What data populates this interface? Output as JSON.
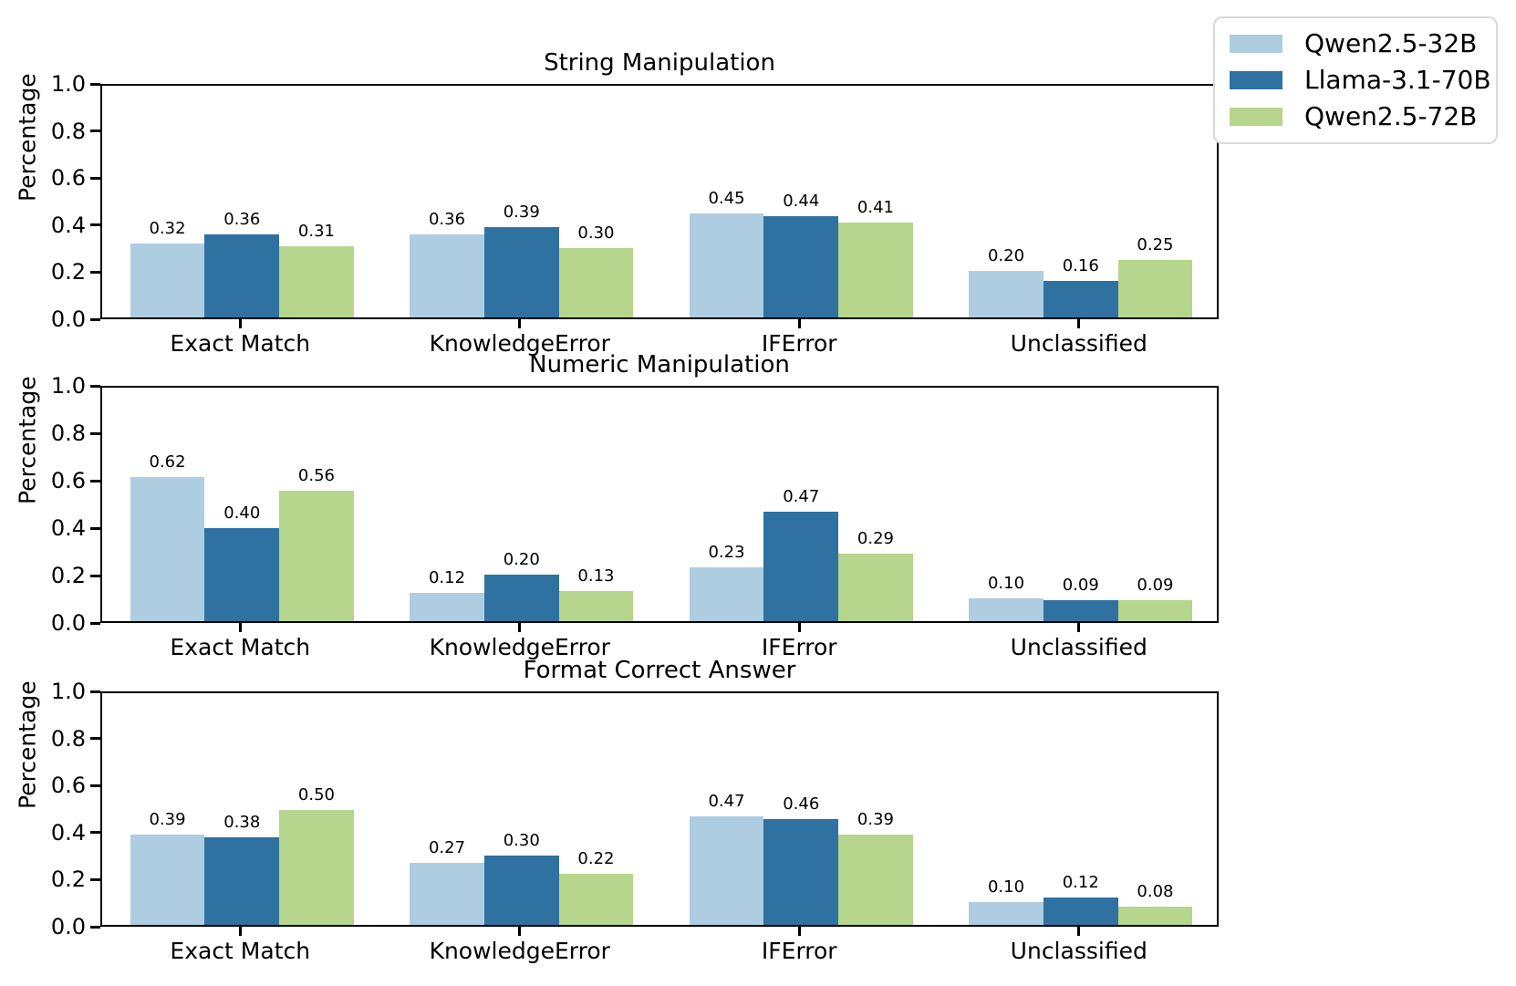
{
  "figure": {
    "background": "#ffffff"
  },
  "colors": {
    "qwen32b": "#aecde1",
    "llama70b": "#2f71a0",
    "qwen72b": "#b5d68c",
    "axis": "#000000",
    "legend_border": "#d9d9d9"
  },
  "legend": {
    "position": "upper-right-outside",
    "entries": [
      {
        "label": "Qwen2.5-32B",
        "color": "#aecde1"
      },
      {
        "label": "Llama-3.1-70B",
        "color": "#2f71a0"
      },
      {
        "label": "Qwen2.5-72B",
        "color": "#b5d68c"
      }
    ]
  },
  "chart_data": [
    {
      "type": "bar",
      "title": "String Manipulation",
      "xlabel": "",
      "ylabel": "Percentage",
      "ylim": [
        0,
        1.0
      ],
      "yticks": [
        "0.0",
        "0.2",
        "0.4",
        "0.6",
        "0.8",
        "1.0"
      ],
      "grid": false,
      "categories": [
        "Exact Match",
        "KnowledgeError",
        "IFError",
        "Unclassified"
      ],
      "series": [
        {
          "name": "Qwen2.5-32B",
          "color": "#aecde1",
          "values": [
            0.32,
            0.36,
            0.45,
            0.2
          ]
        },
        {
          "name": "Llama-3.1-70B",
          "color": "#2f71a0",
          "values": [
            0.36,
            0.39,
            0.44,
            0.16
          ]
        },
        {
          "name": "Qwen2.5-72B",
          "color": "#b5d68c",
          "values": [
            0.31,
            0.3,
            0.41,
            0.25
          ]
        }
      ],
      "bar_label_decimals": 2
    },
    {
      "type": "bar",
      "title": "Numeric Manipulation",
      "xlabel": "",
      "ylabel": "Percentage",
      "ylim": [
        0,
        1.0
      ],
      "yticks": [
        "0.0",
        "0.2",
        "0.4",
        "0.6",
        "0.8",
        "1.0"
      ],
      "grid": false,
      "categories": [
        "Exact Match",
        "KnowledgeError",
        "IFError",
        "Unclassified"
      ],
      "series": [
        {
          "name": "Qwen2.5-32B",
          "color": "#aecde1",
          "values": [
            0.62,
            0.12,
            0.23,
            0.1
          ]
        },
        {
          "name": "Llama-3.1-70B",
          "color": "#2f71a0",
          "values": [
            0.4,
            0.2,
            0.47,
            0.09
          ]
        },
        {
          "name": "Qwen2.5-72B",
          "color": "#b5d68c",
          "values": [
            0.56,
            0.13,
            0.29,
            0.09
          ]
        }
      ],
      "bar_label_decimals": 2
    },
    {
      "type": "bar",
      "title": "Format Correct Answer",
      "xlabel": "",
      "ylabel": "Percentage",
      "ylim": [
        0,
        1.0
      ],
      "yticks": [
        "0.0",
        "0.2",
        "0.4",
        "0.6",
        "0.8",
        "1.0"
      ],
      "grid": false,
      "categories": [
        "Exact Match",
        "KnowledgeError",
        "IFError",
        "Unclassified"
      ],
      "series": [
        {
          "name": "Qwen2.5-32B",
          "color": "#aecde1",
          "values": [
            0.39,
            0.27,
            0.47,
            0.1
          ]
        },
        {
          "name": "Llama-3.1-70B",
          "color": "#2f71a0",
          "values": [
            0.38,
            0.3,
            0.46,
            0.12
          ]
        },
        {
          "name": "Qwen2.5-72B",
          "color": "#b5d68c",
          "values": [
            0.5,
            0.22,
            0.39,
            0.08
          ]
        }
      ],
      "bar_label_decimals": 2
    }
  ]
}
